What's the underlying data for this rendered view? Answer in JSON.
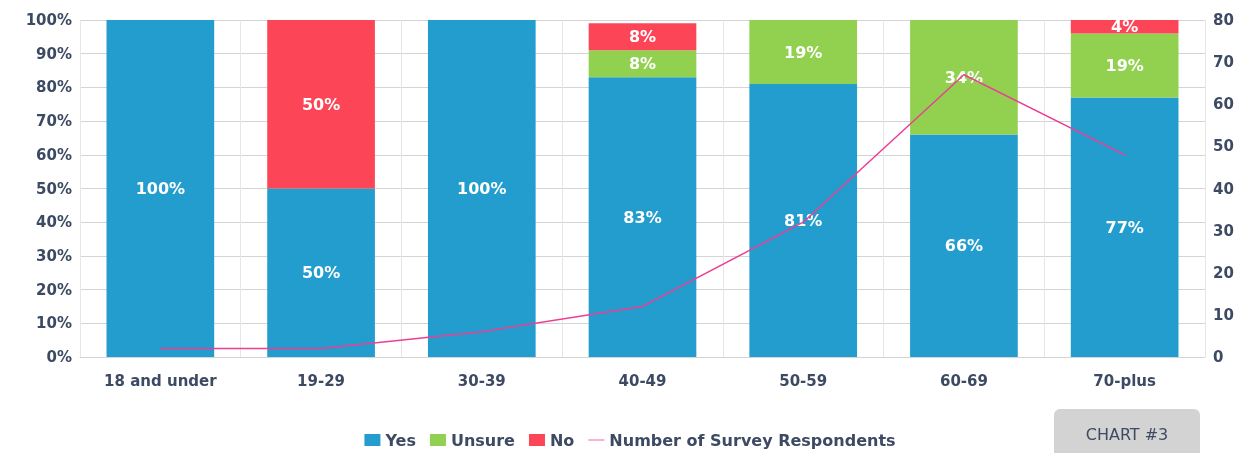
{
  "chart_data": {
    "type": "bar",
    "stacked": true,
    "categories": [
      "18 and under",
      "19-29",
      "30-39",
      "40-49",
      "50-59",
      "60-69",
      "70-plus"
    ],
    "series": [
      {
        "name": "Yes",
        "color": "#239dcd",
        "values": [
          100,
          50,
          100,
          83,
          81,
          66,
          77
        ],
        "value_labels": [
          "100%",
          "50%",
          "100%",
          "83%",
          "81%",
          "66%",
          "77%"
        ]
      },
      {
        "name": "Unsure",
        "color": "#92d050",
        "values": [
          null,
          null,
          null,
          8,
          19,
          34,
          19
        ],
        "value_labels": [
          null,
          null,
          null,
          "8%",
          "19%",
          "34%",
          "19%"
        ]
      },
      {
        "name": "No",
        "color": "#fc4658",
        "values": [
          null,
          50,
          null,
          8,
          null,
          null,
          4
        ],
        "value_labels": [
          null,
          "50%",
          null,
          "8%",
          null,
          null,
          "4%"
        ]
      },
      {
        "name": "Number of Survey Respondents",
        "type": "line",
        "axis": "y2",
        "color": "#ec3f94",
        "values": [
          2,
          2,
          6,
          12,
          32,
          67,
          48
        ]
      }
    ],
    "ylim": [
      0,
      100
    ],
    "yticks": [
      {
        "value": 0,
        "label": "0%"
      },
      {
        "value": 10,
        "label": "10%"
      },
      {
        "value": 20,
        "label": "20%"
      },
      {
        "value": 30,
        "label": "30%"
      },
      {
        "value": 40,
        "label": "40%"
      },
      {
        "value": 50,
        "label": "50%"
      },
      {
        "value": 60,
        "label": "60%"
      },
      {
        "value": 70,
        "label": "70%"
      },
      {
        "value": 80,
        "label": "80%"
      },
      {
        "value": 90,
        "label": "90%"
      },
      {
        "value": 100,
        "label": "100%"
      }
    ],
    "y2lim": [
      0,
      80
    ],
    "y2ticks": [
      0,
      10,
      20,
      30,
      40,
      50,
      60,
      70,
      80
    ],
    "grid": true,
    "legend": "bottom",
    "marker": "none",
    "annotations": [
      "CHART #3"
    ]
  }
}
